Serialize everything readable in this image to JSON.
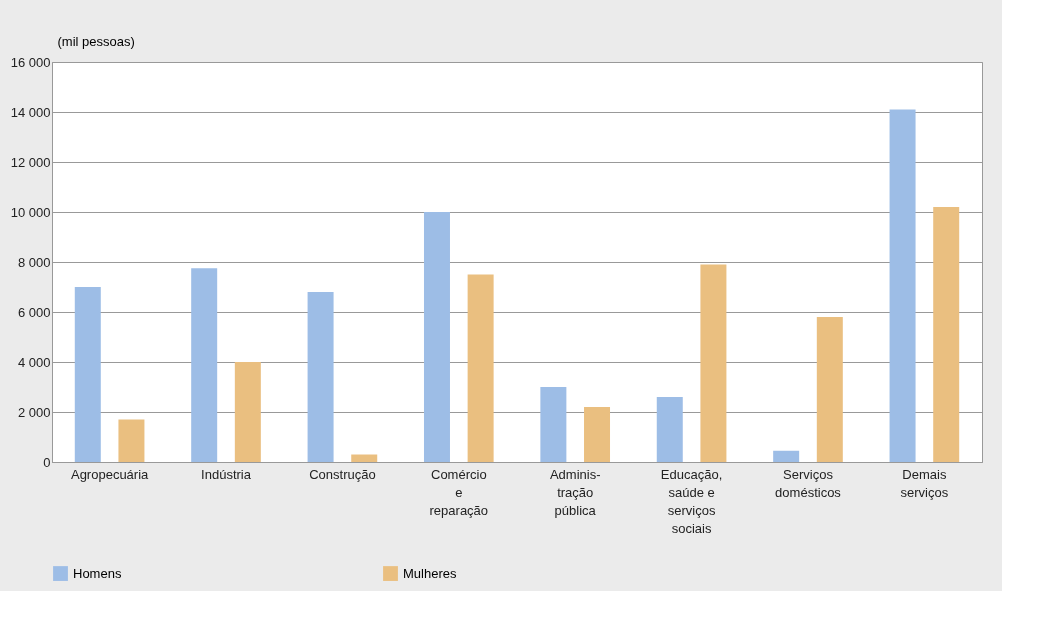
{
  "chart_data": {
    "type": "bar",
    "ylabel": "(mil pessoas)",
    "categories": [
      "Agropecuária",
      "Indústria",
      "Construção",
      "Comércio\ne\nreparação",
      "Adminis-\ntração\npública",
      "Educação,\nsaúde e\nserviços\nsociais",
      "Serviços\ndomésticos",
      "Demais\nserviços"
    ],
    "series": [
      {
        "name": "Homens",
        "color": "#9dbde6",
        "values": [
          7000,
          7750,
          6800,
          10000,
          3000,
          2600,
          450,
          14100
        ]
      },
      {
        "name": "Mulheres",
        "color": "#eabf80",
        "values": [
          1700,
          4000,
          300,
          7500,
          2200,
          7900,
          5800,
          10200
        ]
      }
    ],
    "ylim": [
      0,
      16000
    ],
    "yticks": [
      0,
      {
        "value": 2000,
        "label": "2 000"
      },
      {
        "value": 4000,
        "label": "4 000"
      },
      {
        "value": 6000,
        "label": "6 000"
      },
      {
        "value": 8000,
        "label": "8 000"
      },
      {
        "value": 10000,
        "label": "10 000"
      },
      {
        "value": 12000,
        "label": "12 000"
      },
      {
        "value": 14000,
        "label": "14 000"
      },
      {
        "value": 16000,
        "label": "16 000"
      }
    ],
    "grid": "y",
    "legend": "bottom"
  }
}
